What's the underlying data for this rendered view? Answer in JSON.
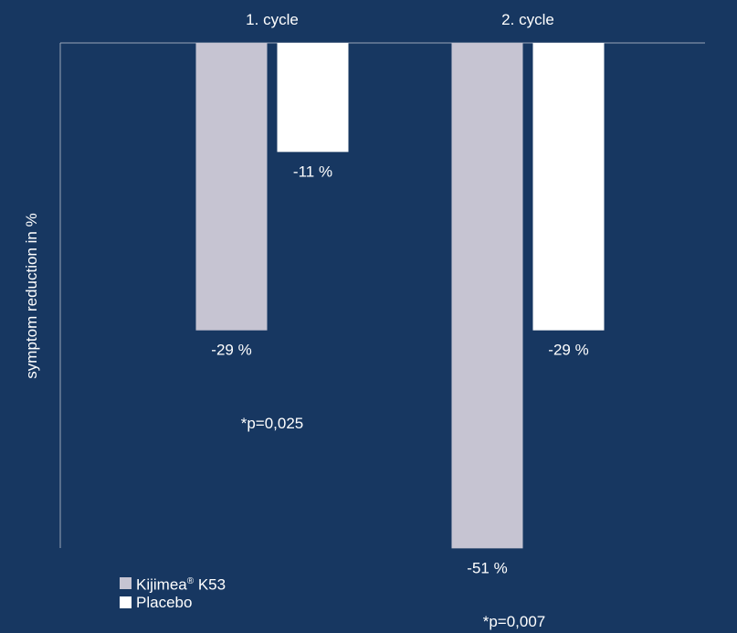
{
  "colors": {
    "background": "#173761",
    "axis": "#9aa6b6",
    "kijimea": "#c6c4d2",
    "placebo": "#ffffff",
    "text": "#ffffff"
  },
  "chart_data": {
    "type": "bar",
    "title": "",
    "xlabel": "",
    "ylabel": "symptom reduction in %",
    "ylim": [
      -55,
      0
    ],
    "categories": [
      "1. cycle",
      "2. cycle"
    ],
    "series": [
      {
        "name": "Kijimea",
        "name_sup": "®",
        "name_suffix": " K53",
        "values": [
          -29,
          -51
        ],
        "labels": [
          "-29 %",
          "-51 %"
        ]
      },
      {
        "name": "Placebo",
        "values": [
          -11,
          -29
        ],
        "labels": [
          "-11 %",
          "-29 %"
        ]
      }
    ],
    "annotations": [
      "*p=0,025",
      "*p=0,007"
    ],
    "legend_position": "bottom-left",
    "grid": false
  }
}
